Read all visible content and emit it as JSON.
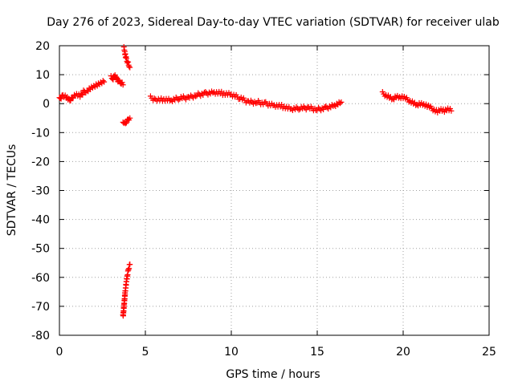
{
  "chart_data": {
    "type": "scatter",
    "title": "Day 276 of 2023, Sidereal Day-to-day VTEC variation (SDTVAR) for receiver ulab",
    "xlabel": "GPS time / hours",
    "ylabel": "SDTVAR / TECUs",
    "xlim": [
      0,
      25
    ],
    "ylim": [
      -80,
      20
    ],
    "xticks": [
      0,
      5,
      10,
      15,
      20,
      25
    ],
    "yticks": [
      -80,
      -70,
      -60,
      -50,
      -40,
      -30,
      -20,
      -10,
      0,
      10,
      20
    ],
    "grid": true,
    "marker": "plus",
    "marker_color": "#ff0000",
    "series": [
      {
        "name": "SDTVAR",
        "segments": [
          {
            "x": [
              0.0,
              0.2,
              0.4,
              0.6,
              0.8,
              1.0,
              1.2,
              1.4,
              1.6,
              1.8,
              2.0,
              2.2,
              2.4,
              2.6
            ],
            "y": [
              1.5,
              3.0,
              2.5,
              1.0,
              2.5,
              3.0,
              2.5,
              4.0,
              4.5,
              5.5,
              6.0,
              6.5,
              7.0,
              7.5
            ]
          },
          {
            "x": [
              3.0,
              3.1,
              3.2,
              3.3,
              3.4,
              3.5,
              3.6,
              3.7
            ],
            "y": [
              9.0,
              8.5,
              10.0,
              9.0,
              8.0,
              7.5,
              7.0,
              6.5
            ]
          },
          {
            "x": [
              3.75,
              3.8,
              3.85,
              3.9,
              3.95,
              4.0,
              4.05,
              4.1
            ],
            "y": [
              19.0,
              18.0,
              16.5,
              15.5,
              14.5,
              14.0,
              13.0,
              12.5
            ]
          },
          {
            "x": [
              3.7,
              3.8,
              3.9,
              4.0,
              4.1
            ],
            "y": [
              -7.0,
              -6.5,
              -6.0,
              -5.5,
              -5.0
            ]
          },
          {
            "x": [
              3.7,
              3.73,
              3.76,
              3.79,
              3.82,
              3.85,
              3.88,
              3.91,
              3.94,
              3.97,
              4.0,
              4.05,
              4.1
            ],
            "y": [
              -73.5,
              -71.5,
              -69.5,
              -67.5,
              -65.5,
              -64.0,
              -62.5,
              -61.0,
              -59.5,
              -58.5,
              -57.5,
              -56.5,
              -55.5
            ]
          },
          {
            "x": [
              5.3,
              5.6,
              6.0,
              6.5,
              7.0,
              7.5,
              8.0,
              8.5,
              9.0,
              9.5,
              10.0,
              10.5,
              11.0,
              11.5,
              12.0,
              12.5,
              13.0,
              13.5,
              14.0,
              14.5,
              15.0,
              15.5,
              16.0,
              16.4
            ],
            "y": [
              2.0,
              1.5,
              1.5,
              1.0,
              2.0,
              2.0,
              3.0,
              3.5,
              4.0,
              3.5,
              3.0,
              2.0,
              0.5,
              0.5,
              0.0,
              -0.5,
              -1.0,
              -2.0,
              -1.5,
              -1.5,
              -2.0,
              -1.5,
              -0.5,
              0.5
            ]
          },
          {
            "x": [
              18.8,
              19.0,
              19.2,
              19.4,
              19.6,
              19.8,
              20.0,
              20.2,
              20.4,
              20.6,
              20.8,
              21.0,
              21.2,
              21.4,
              21.6,
              21.8,
              22.0,
              22.2,
              22.4,
              22.6,
              22.8
            ],
            "y": [
              3.5,
              3.0,
              2.5,
              1.5,
              2.5,
              2.0,
              2.0,
              1.5,
              1.0,
              0.5,
              -0.5,
              0.0,
              -0.5,
              -1.0,
              -1.5,
              -2.0,
              -2.5,
              -2.0,
              -2.5,
              -2.0,
              -2.5
            ]
          }
        ]
      }
    ]
  }
}
